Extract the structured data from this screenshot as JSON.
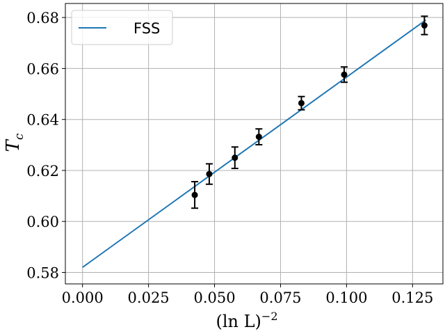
{
  "chart_data": {
    "type": "scatter",
    "xlabel": "(ln L)",
    "xlabel_superscript": "−2",
    "ylabel": "T",
    "ylabel_subscript": "c",
    "xlim": [
      -0.0065,
      0.1365
    ],
    "ylim": [
      0.5755,
      0.6855
    ],
    "x_ticks": [
      0.0,
      0.025,
      0.05,
      0.075,
      0.1,
      0.125
    ],
    "x_tick_labels": [
      "0.000",
      "0.025",
      "0.050",
      "0.075",
      "0.100",
      "0.125"
    ],
    "y_ticks": [
      0.58,
      0.6,
      0.62,
      0.64,
      0.66,
      0.68
    ],
    "y_tick_labels": [
      "0.58",
      "0.60",
      "0.62",
      "0.64",
      "0.66",
      "0.68"
    ],
    "grid": true,
    "legend": {
      "placement": "top-left",
      "entries": [
        "FSS"
      ]
    },
    "fit_line": {
      "name": "FSS",
      "color": "#1f77b4",
      "x": [
        0.0,
        0.13
      ],
      "y": [
        0.582,
        0.679
      ]
    },
    "points": {
      "color": "#000000",
      "x": [
        0.0425,
        0.048,
        0.0577,
        0.0668,
        0.0829,
        0.0991,
        0.1295
      ],
      "y": [
        0.6104,
        0.6186,
        0.625,
        0.6332,
        0.6464,
        0.6576,
        0.6769
      ],
      "err": [
        0.0052,
        0.004,
        0.0042,
        0.0031,
        0.0026,
        0.003,
        0.0036
      ]
    }
  }
}
